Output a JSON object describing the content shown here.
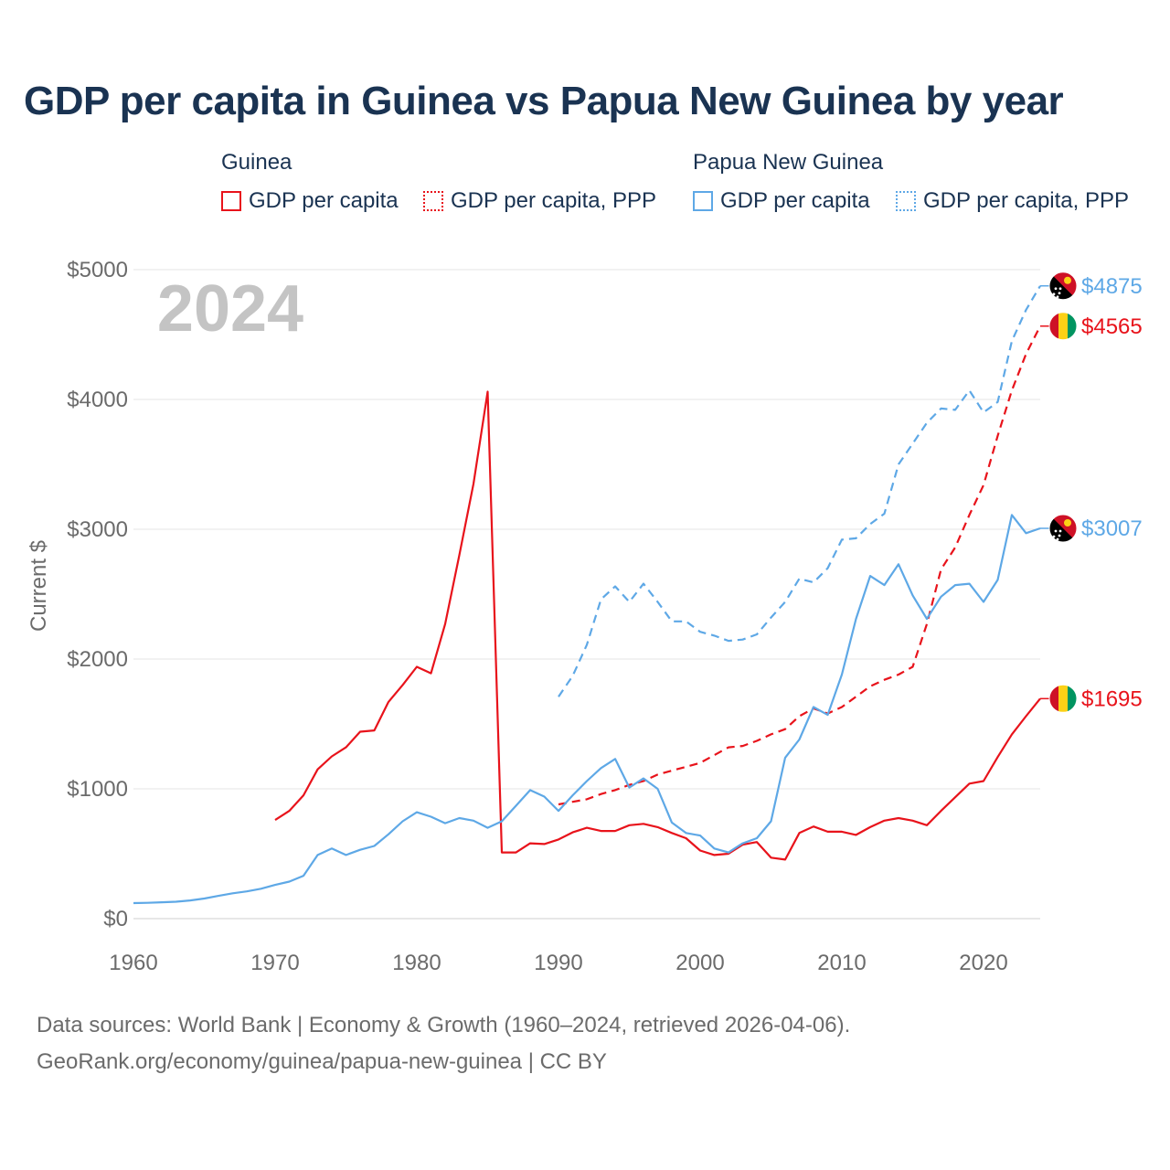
{
  "page": {
    "title": "GDP per capita in Guinea vs Papua New Guinea by year",
    "footer_line1": "Data sources: World Bank | Economy & Growth (1960–2024, retrieved 2026-04-06).",
    "footer_line2": "GeoRank.org/economy/guinea/papua-new-guinea | CC BY"
  },
  "legend": {
    "groups": [
      {
        "title": "Guinea",
        "items": [
          {
            "label": "GDP per capita",
            "color": "#e8131b",
            "style": "solid"
          },
          {
            "label": "GDP per capita, PPP",
            "color": "#e8131b",
            "style": "dotted"
          }
        ]
      },
      {
        "title": "Papua New Guinea",
        "items": [
          {
            "label": "GDP per capita",
            "color": "#5ea8e6",
            "style": "solid"
          },
          {
            "label": "GDP per capita, PPP",
            "color": "#5ea8e6",
            "style": "dotted"
          }
        ]
      }
    ]
  },
  "chart_data": {
    "type": "line",
    "title": "GDP per capita in Guinea vs Papua New Guinea by year",
    "xlabel": "",
    "ylabel": "Current $",
    "year_label": "2024",
    "xlim": [
      1960,
      2024
    ],
    "ylim": [
      0,
      5000
    ],
    "x_ticks": [
      1960,
      1970,
      1980,
      1990,
      2000,
      2010,
      2020
    ],
    "y_ticks": [
      0,
      1000,
      2000,
      3000,
      4000,
      5000
    ],
    "y_tick_labels": [
      "$0",
      "$1000",
      "$2000",
      "$3000",
      "$4000",
      "$5000"
    ],
    "grid": true,
    "series": [
      {
        "name": "Guinea GDP per capita",
        "country": "Guinea",
        "color": "#e8131b",
        "dash": "solid",
        "end_label": "$1695",
        "flag": "guinea",
        "x": [
          1970,
          1971,
          1972,
          1973,
          1974,
          1975,
          1976,
          1977,
          1978,
          1979,
          1980,
          1981,
          1982,
          1983,
          1984,
          1985,
          1986,
          1987,
          1988,
          1989,
          1990,
          1991,
          1992,
          1993,
          1994,
          1995,
          1996,
          1997,
          1998,
          1999,
          2000,
          2001,
          2002,
          2003,
          2004,
          2005,
          2006,
          2007,
          2008,
          2009,
          2010,
          2011,
          2012,
          2013,
          2014,
          2015,
          2016,
          2017,
          2018,
          2019,
          2020,
          2021,
          2022,
          2023,
          2024
        ],
        "y": [
          760,
          830,
          950,
          1150,
          1250,
          1320,
          1440,
          1450,
          1670,
          1800,
          1940,
          1890,
          2270,
          2800,
          3350,
          4060,
          510,
          510,
          580,
          575,
          610,
          665,
          700,
          675,
          675,
          720,
          730,
          705,
          660,
          620,
          525,
          490,
          500,
          570,
          590,
          470,
          455,
          660,
          710,
          670,
          670,
          645,
          705,
          755,
          775,
          755,
          720,
          830,
          935,
          1040,
          1060,
          1245,
          1420,
          1560,
          1695
        ]
      },
      {
        "name": "Guinea GDP per capita, PPP",
        "country": "Guinea",
        "color": "#e8131b",
        "dash": "dashed",
        "end_label": "$4565",
        "flag": "guinea",
        "x": [
          1990,
          1991,
          1992,
          1993,
          1994,
          1995,
          1996,
          1997,
          1998,
          1999,
          2000,
          2001,
          2002,
          2003,
          2004,
          2005,
          2006,
          2007,
          2008,
          2009,
          2010,
          2011,
          2012,
          2013,
          2014,
          2015,
          2016,
          2017,
          2018,
          2019,
          2020,
          2021,
          2022,
          2023,
          2024
        ],
        "y": [
          880,
          900,
          920,
          960,
          990,
          1030,
          1060,
          1110,
          1140,
          1170,
          1200,
          1260,
          1320,
          1330,
          1370,
          1420,
          1460,
          1560,
          1620,
          1580,
          1630,
          1710,
          1790,
          1840,
          1880,
          1940,
          2270,
          2690,
          2860,
          3110,
          3340,
          3720,
          4070,
          4350,
          4565
        ]
      },
      {
        "name": "Papua New Guinea GDP per capita",
        "country": "Papua New Guinea",
        "color": "#5ea8e6",
        "dash": "solid",
        "end_label": "$3007",
        "flag": "png",
        "x": [
          1960,
          1961,
          1962,
          1963,
          1964,
          1965,
          1966,
          1967,
          1968,
          1969,
          1970,
          1971,
          1972,
          1973,
          1974,
          1975,
          1976,
          1977,
          1978,
          1979,
          1980,
          1981,
          1982,
          1983,
          1984,
          1985,
          1986,
          1987,
          1988,
          1989,
          1990,
          1991,
          1992,
          1993,
          1994,
          1995,
          1996,
          1997,
          1998,
          1999,
          2000,
          2001,
          2002,
          2003,
          2004,
          2005,
          2006,
          2007,
          2008,
          2009,
          2010,
          2011,
          2012,
          2013,
          2014,
          2015,
          2016,
          2017,
          2018,
          2019,
          2020,
          2021,
          2022,
          2023,
          2024
        ],
        "y": [
          120,
          122,
          126,
          130,
          140,
          155,
          175,
          195,
          210,
          230,
          260,
          285,
          330,
          490,
          540,
          490,
          530,
          560,
          650,
          750,
          820,
          785,
          735,
          775,
          755,
          700,
          750,
          870,
          990,
          940,
          830,
          950,
          1060,
          1160,
          1230,
          1010,
          1080,
          1000,
          740,
          660,
          640,
          540,
          510,
          580,
          620,
          750,
          1240,
          1380,
          1630,
          1570,
          1880,
          2310,
          2640,
          2570,
          2730,
          2490,
          2310,
          2480,
          2570,
          2580,
          2440,
          2610,
          3110,
          2970,
          3007
        ]
      },
      {
        "name": "Papua New Guinea GDP per capita, PPP",
        "country": "Papua New Guinea",
        "color": "#5ea8e6",
        "dash": "dashed",
        "end_label": "$4875",
        "flag": "png",
        "x": [
          1990,
          1991,
          1992,
          1993,
          1994,
          1995,
          1996,
          1997,
          1998,
          1999,
          2000,
          2001,
          2002,
          2003,
          2004,
          2005,
          2006,
          2007,
          2008,
          2009,
          2010,
          2011,
          2012,
          2013,
          2014,
          2015,
          2016,
          2017,
          2018,
          2019,
          2020,
          2021,
          2022,
          2023,
          2024
        ],
        "y": [
          1710,
          1870,
          2110,
          2460,
          2560,
          2440,
          2580,
          2440,
          2290,
          2290,
          2210,
          2180,
          2140,
          2150,
          2190,
          2320,
          2440,
          2620,
          2590,
          2700,
          2920,
          2930,
          3040,
          3120,
          3500,
          3660,
          3820,
          3930,
          3920,
          4070,
          3900,
          3980,
          4450,
          4690,
          4875
        ]
      }
    ]
  }
}
